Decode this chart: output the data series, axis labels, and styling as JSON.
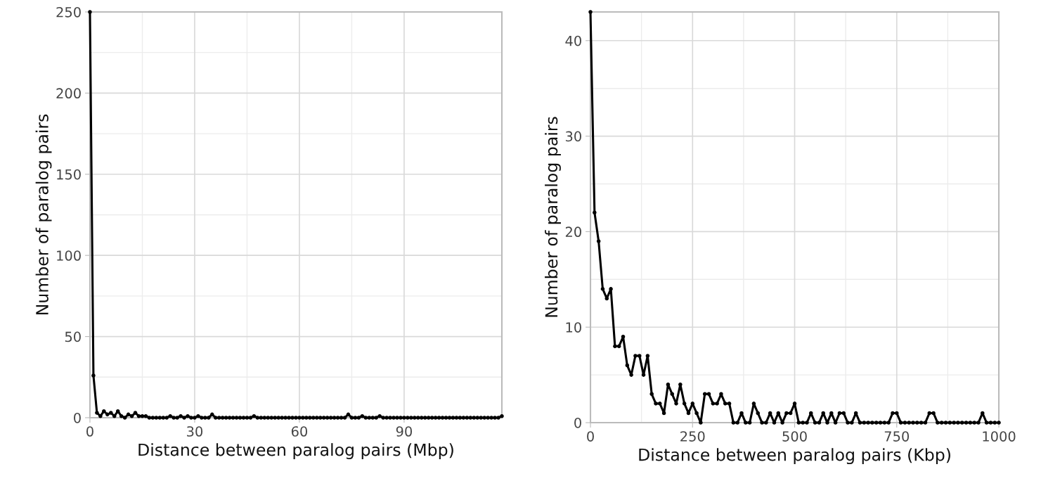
{
  "chart_data": [
    {
      "type": "line",
      "xlabel": "Distance between paralog pairs (Mbp)",
      "ylabel": "Number of paralog pairs",
      "xlim": [
        0,
        118
      ],
      "ylim": [
        0,
        250
      ],
      "xticks": [
        0,
        30,
        60,
        90
      ],
      "yticks": [
        0,
        50,
        100,
        150,
        200,
        250
      ],
      "grid": true,
      "marker": "circle",
      "line_style": "solid",
      "x": [
        0,
        1,
        2,
        3,
        4,
        5,
        6,
        7,
        8,
        9,
        10,
        11,
        12,
        13,
        14,
        15,
        16,
        17,
        18,
        19,
        20,
        21,
        22,
        23,
        24,
        25,
        26,
        27,
        28,
        29,
        30,
        31,
        32,
        33,
        34,
        35,
        36,
        37,
        38,
        39,
        40,
        41,
        42,
        43,
        44,
        45,
        46,
        47,
        48,
        49,
        50,
        51,
        52,
        53,
        54,
        55,
        56,
        57,
        58,
        59,
        60,
        61,
        62,
        63,
        64,
        65,
        66,
        67,
        68,
        69,
        70,
        71,
        72,
        73,
        74,
        75,
        76,
        77,
        78,
        79,
        80,
        81,
        82,
        83,
        84,
        85,
        86,
        87,
        88,
        89,
        90,
        91,
        92,
        93,
        94,
        95,
        96,
        97,
        98,
        99,
        100,
        101,
        102,
        103,
        104,
        105,
        106,
        107,
        108,
        109,
        110,
        111,
        112,
        113,
        114,
        115,
        116,
        117,
        118
      ],
      "series": [
        {
          "color": "#000000",
          "values": [
            250,
            26,
            3,
            1,
            4,
            2,
            3,
            1,
            4,
            1,
            0,
            2,
            1,
            3,
            1,
            1,
            1,
            0,
            0,
            0,
            0,
            0,
            0,
            1,
            0,
            0,
            1,
            0,
            1,
            0,
            0,
            1,
            0,
            0,
            0,
            2,
            0,
            0,
            0,
            0,
            0,
            0,
            0,
            0,
            0,
            0,
            0,
            1,
            0,
            0,
            0,
            0,
            0,
            0,
            0,
            0,
            0,
            0,
            0,
            0,
            0,
            0,
            0,
            0,
            0,
            0,
            0,
            0,
            0,
            0,
            0,
            0,
            0,
            0,
            2,
            0,
            0,
            0,
            1,
            0,
            0,
            0,
            0,
            1,
            0,
            0,
            0,
            0,
            0,
            0,
            0,
            0,
            0,
            0,
            0,
            0,
            0,
            0,
            0,
            0,
            0,
            0,
            0,
            0,
            0,
            0,
            0,
            0,
            0,
            0,
            0,
            0,
            0,
            0,
            0,
            0,
            0,
            0,
            1
          ]
        }
      ]
    },
    {
      "type": "line",
      "xlabel": "Distance between paralog pairs (Kbp)",
      "ylabel": "Number of paralog pairs",
      "xlim": [
        0,
        1000
      ],
      "ylim": [
        0,
        43
      ],
      "xticks": [
        0,
        250,
        500,
        750,
        1000
      ],
      "yticks": [
        0,
        10,
        20,
        30,
        40
      ],
      "grid": true,
      "marker": "circle",
      "line_style": "solid",
      "x": [
        0,
        10,
        20,
        30,
        40,
        50,
        60,
        70,
        80,
        90,
        100,
        110,
        120,
        130,
        140,
        150,
        160,
        170,
        180,
        190,
        200,
        210,
        220,
        230,
        240,
        250,
        260,
        270,
        280,
        290,
        300,
        310,
        320,
        330,
        340,
        350,
        360,
        370,
        380,
        390,
        400,
        410,
        420,
        430,
        440,
        450,
        460,
        470,
        480,
        490,
        500,
        510,
        520,
        530,
        540,
        550,
        560,
        570,
        580,
        590,
        600,
        610,
        620,
        630,
        640,
        650,
        660,
        670,
        680,
        690,
        700,
        710,
        720,
        730,
        740,
        750,
        760,
        770,
        780,
        790,
        800,
        810,
        820,
        830,
        840,
        850,
        860,
        870,
        880,
        890,
        900,
        910,
        920,
        930,
        940,
        950,
        960,
        970,
        980,
        990,
        1000
      ],
      "series": [
        {
          "color": "#000000",
          "values": [
            43,
            22,
            19,
            14,
            13,
            14,
            8,
            8,
            9,
            6,
            5,
            7,
            7,
            5,
            7,
            3,
            2,
            2,
            1,
            4,
            3,
            2,
            4,
            2,
            1,
            2,
            1,
            0,
            3,
            3,
            2,
            2,
            3,
            2,
            2,
            0,
            0,
            1,
            0,
            0,
            2,
            1,
            0,
            0,
            1,
            0,
            1,
            0,
            1,
            1,
            2,
            0,
            0,
            0,
            1,
            0,
            0,
            1,
            0,
            1,
            0,
            1,
            1,
            0,
            0,
            1,
            0,
            0,
            0,
            0,
            0,
            0,
            0,
            0,
            1,
            1,
            0,
            0,
            0,
            0,
            0,
            0,
            0,
            1,
            1,
            0,
            0,
            0,
            0,
            0,
            0,
            0,
            0,
            0,
            0,
            0,
            1,
            0,
            0,
            0,
            0
          ]
        }
      ]
    }
  ]
}
